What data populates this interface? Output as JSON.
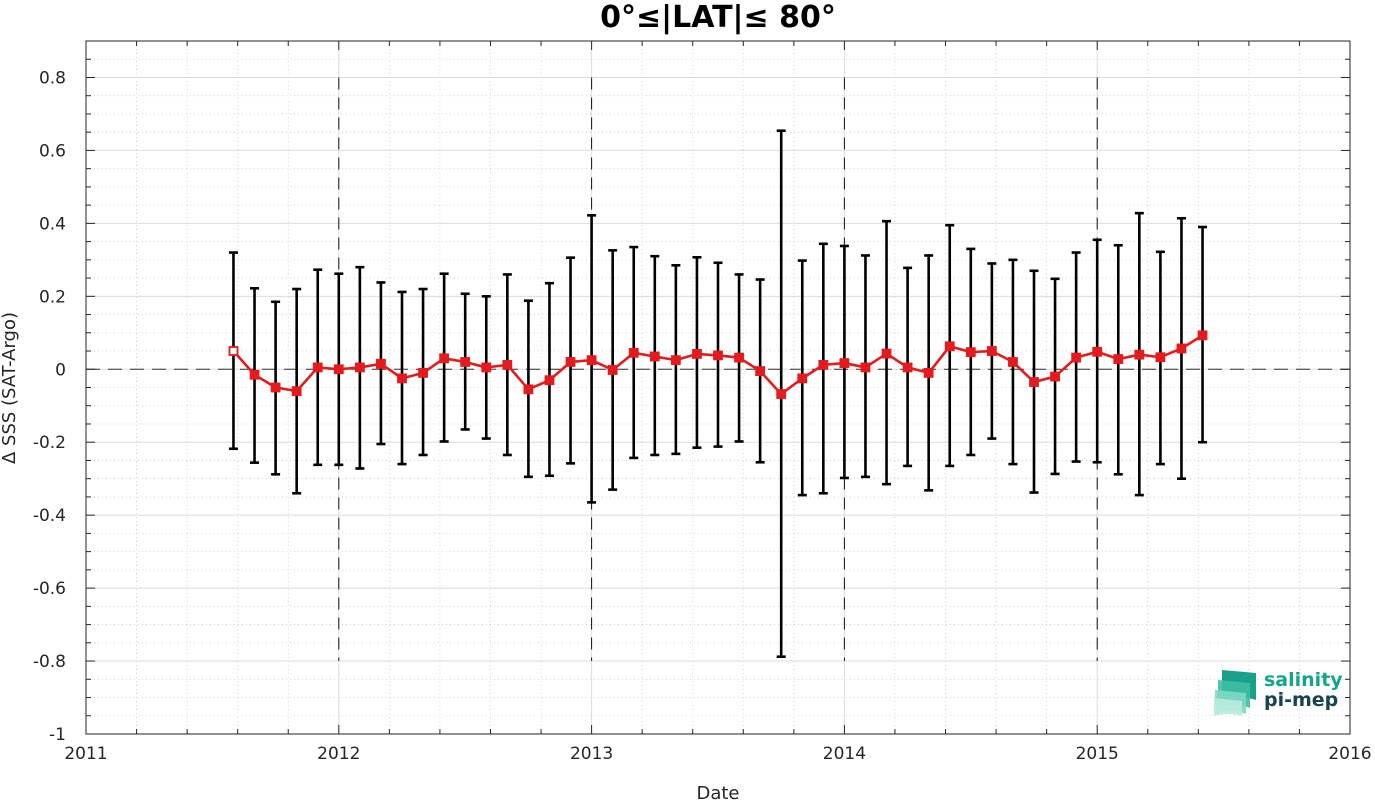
{
  "chart_data": {
    "type": "line",
    "title": "0°≤|LAT|≤ 80°",
    "xlabel": "Date",
    "ylabel": "Δ SSS (SAT-Argo)",
    "xlim": [
      2011,
      2016
    ],
    "ylim": [
      -1,
      0.9
    ],
    "x_ticks": [
      "2011",
      "2012",
      "2013",
      "2014",
      "2015",
      "2016"
    ],
    "y_ticks": [
      "0.8",
      "0.6",
      "0.4",
      "0.2",
      "0",
      "-0.2",
      "-0.4",
      "-0.6",
      "-0.8",
      "-1"
    ],
    "y_tick_values": [
      0.8,
      0.6,
      0.4,
      0.2,
      0,
      -0.2,
      -0.4,
      -0.6,
      -0.8,
      -1
    ],
    "grid": true,
    "zero_line": "dashed",
    "year_lines": "dashed",
    "series": [
      {
        "color": "#e41a1c",
        "error_color": "#000000",
        "x": [
          "2011-08",
          "2011-09",
          "2011-10",
          "2011-11",
          "2011-12",
          "2012-01",
          "2012-02",
          "2012-03",
          "2012-04",
          "2012-05",
          "2012-06",
          "2012-07",
          "2012-08",
          "2012-09",
          "2012-10",
          "2012-11",
          "2012-12",
          "2013-01",
          "2013-02",
          "2013-03",
          "2013-04",
          "2013-05",
          "2013-06",
          "2013-07",
          "2013-08",
          "2013-09",
          "2013-10",
          "2013-11",
          "2013-12",
          "2014-01",
          "2014-02",
          "2014-03",
          "2014-04",
          "2014-05",
          "2014-06",
          "2014-07",
          "2014-08",
          "2014-09",
          "2014-10",
          "2014-11",
          "2014-12",
          "2015-01",
          "2015-02",
          "2015-03",
          "2015-04",
          "2015-05",
          "2015-06"
        ],
        "values": [
          0.05,
          -0.015,
          -0.05,
          -0.06,
          0.005,
          0.0,
          0.005,
          0.015,
          -0.025,
          -0.01,
          0.03,
          0.02,
          0.005,
          0.012,
          -0.055,
          -0.03,
          0.02,
          0.025,
          -0.002,
          0.045,
          0.035,
          0.025,
          0.042,
          0.038,
          0.032,
          -0.005,
          -0.068,
          -0.025,
          0.012,
          0.017,
          0.005,
          0.043,
          0.005,
          -0.01,
          0.063,
          0.047,
          0.05,
          0.02,
          -0.035,
          -0.02,
          0.032,
          0.048,
          0.028,
          0.04,
          0.033,
          0.057,
          0.093
        ],
        "upper": [
          0.32,
          0.222,
          0.185,
          0.22,
          0.273,
          0.262,
          0.28,
          0.238,
          0.212,
          0.22,
          0.262,
          0.207,
          0.2,
          0.26,
          0.188,
          0.236,
          0.306,
          0.422,
          0.326,
          0.335,
          0.31,
          0.285,
          0.307,
          0.292,
          0.26,
          0.246,
          0.654,
          0.298,
          0.344,
          0.338,
          0.312,
          0.406,
          0.278,
          0.312,
          0.395,
          0.33,
          0.29,
          0.3,
          0.27,
          0.248,
          0.32,
          0.355,
          0.34,
          0.428,
          0.322,
          0.414,
          0.39
        ],
        "lower": [
          -0.218,
          -0.256,
          -0.288,
          -0.34,
          -0.262,
          -0.262,
          -0.272,
          -0.205,
          -0.26,
          -0.235,
          -0.198,
          -0.165,
          -0.19,
          -0.235,
          -0.295,
          -0.292,
          -0.258,
          -0.365,
          -0.33,
          -0.243,
          -0.235,
          -0.232,
          -0.215,
          -0.212,
          -0.198,
          -0.255,
          -0.788,
          -0.345,
          -0.34,
          -0.298,
          -0.295,
          -0.315,
          -0.265,
          -0.332,
          -0.265,
          -0.235,
          -0.19,
          -0.26,
          -0.338,
          -0.287,
          -0.253,
          -0.255,
          -0.288,
          -0.345,
          -0.26,
          -0.3,
          -0.2
        ]
      }
    ]
  },
  "logo": {
    "line1": "salinity",
    "line2": "pi-mep"
  }
}
